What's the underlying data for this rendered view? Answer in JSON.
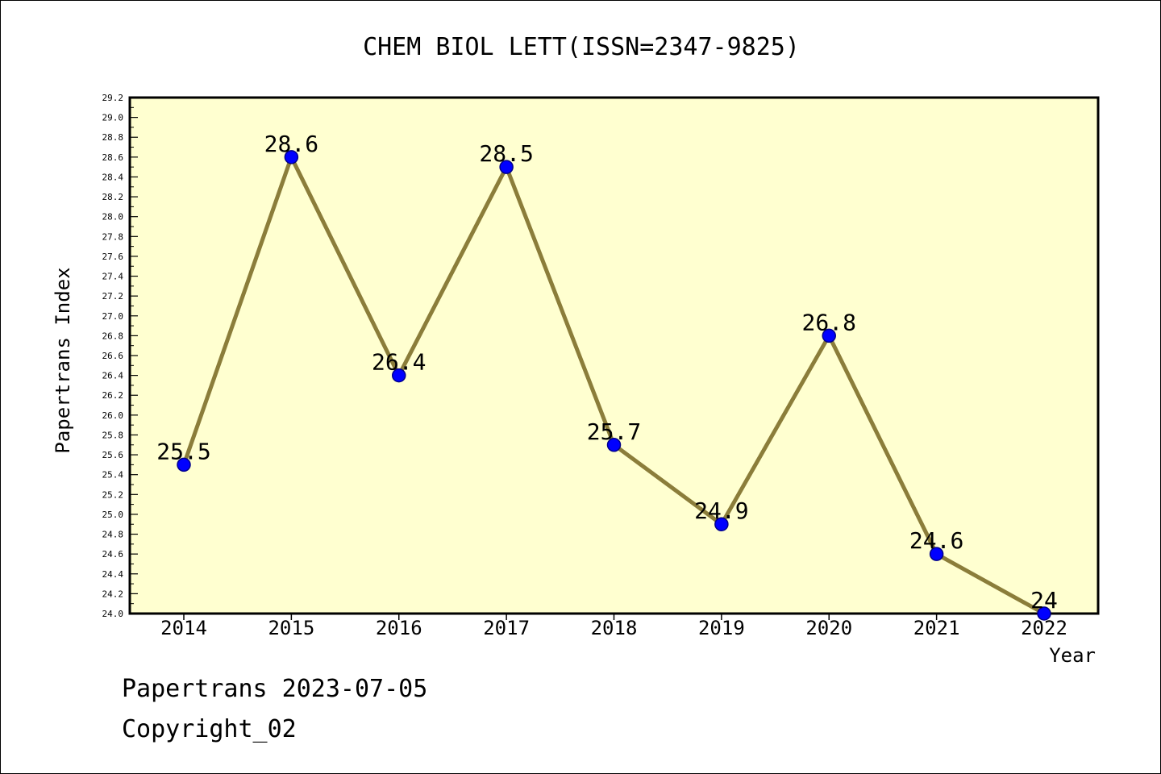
{
  "chart_data": {
    "type": "line",
    "title": "CHEM BIOL LETT(ISSN=2347-9825)",
    "xlabel": "Year",
    "ylabel": "Papertrans Index",
    "categories": [
      "2014",
      "2015",
      "2016",
      "2017",
      "2018",
      "2019",
      "2020",
      "2021",
      "2022"
    ],
    "series": [
      {
        "values": [
          25.5,
          28.6,
          26.4,
          28.5,
          25.7,
          24.9,
          26.8,
          24.6,
          24.0
        ],
        "labels": [
          "25.5",
          "28.6",
          "26.4",
          "28.5",
          "25.7",
          "24.9",
          "26.8",
          "24.6",
          "24"
        ]
      }
    ],
    "ylim": [
      24.0,
      29.2
    ],
    "yticks": [
      "24.0",
      "24.2",
      "24.4",
      "24.6",
      "24.8",
      "25.0",
      "25.2",
      "25.4",
      "25.6",
      "25.8",
      "26.0",
      "26.2",
      "26.4",
      "26.6",
      "26.8",
      "27.0",
      "27.2",
      "27.4",
      "27.6",
      "27.8",
      "28.0",
      "28.2",
      "28.4",
      "28.6",
      "28.8",
      "29.0",
      "29.2"
    ],
    "grid": false,
    "colors": {
      "plot_background": "#ffffd0",
      "line": "#8b7d3a",
      "marker_fill": "#0000ff",
      "marker_stroke": "#00008b",
      "axis": "#000000"
    }
  },
  "footer": {
    "line1": "Papertrans 2023-07-05",
    "line2": "Copyright_02"
  }
}
